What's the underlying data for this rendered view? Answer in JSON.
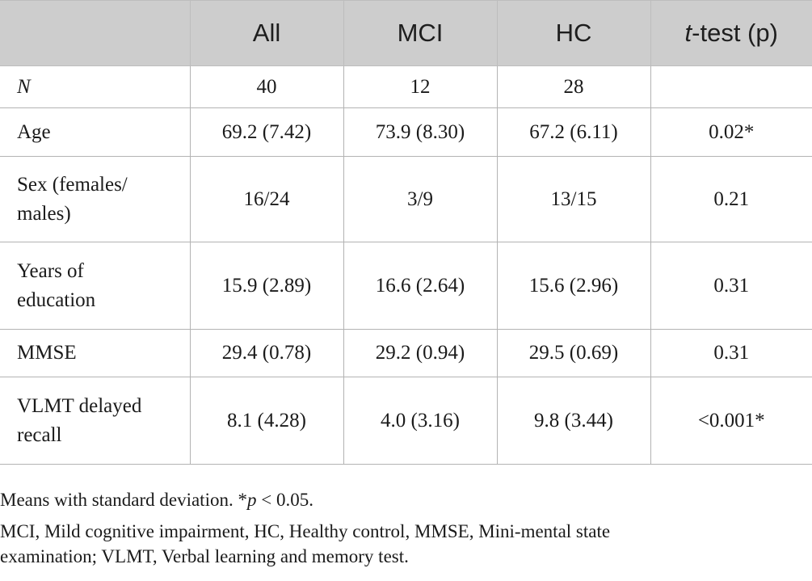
{
  "table": {
    "headers": [
      "",
      "All",
      "MCI",
      "HC",
      "t-test (p)"
    ],
    "header_ttest_italic": "t",
    "header_ttest_rest": "-test (p)",
    "rows": [
      {
        "label": "N",
        "cells": [
          "40",
          "12",
          "28",
          ""
        ]
      },
      {
        "label": "Age",
        "cells": [
          "69.2 (7.42)",
          "73.9 (8.30)",
          "67.2 (6.11)",
          "0.02*"
        ]
      },
      {
        "label_lines": [
          "Sex (females/",
          "males)"
        ],
        "cells": [
          "16/24",
          "3/9",
          "13/15",
          "0.21"
        ]
      },
      {
        "label_lines": [
          "Years of",
          "education"
        ],
        "cells": [
          "15.9 (2.89)",
          "16.6 (2.64)",
          "15.6 (2.96)",
          "0.31"
        ]
      },
      {
        "label": "MMSE",
        "cells": [
          "29.4 (0.78)",
          "29.2 (0.94)",
          "29.5 (0.69)",
          "0.31"
        ]
      },
      {
        "label_lines": [
          "VLMT delayed",
          "recall"
        ],
        "cells": [
          "8.1 (4.28)",
          "4.0 (3.16)",
          "9.8 (3.44)",
          "<0.001*"
        ]
      }
    ]
  },
  "notes": {
    "line1_a": "Means with standard deviation. *",
    "line1_p": "p",
    "line1_b": " < 0.05.",
    "line2": "MCI, Mild cognitive impairment, HC, Healthy control, MMSE, Mini-mental state",
    "line3": "examination; VLMT, Verbal learning and memory test."
  },
  "colors": {
    "header_bg": "#cdcdcd",
    "border": "#b3b3b3"
  }
}
